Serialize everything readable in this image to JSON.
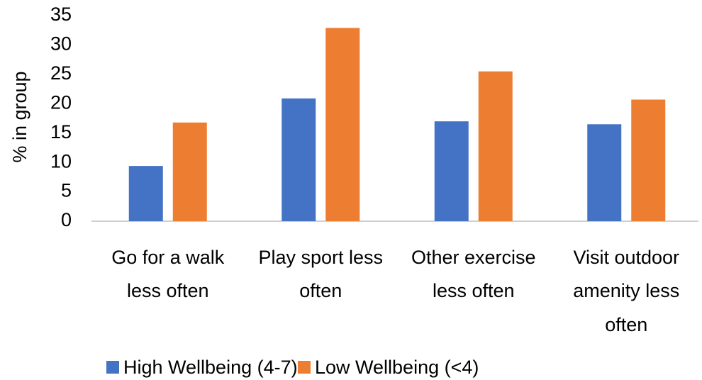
{
  "chart_data": {
    "type": "bar",
    "y_label": "% in group",
    "categories": [
      "Go for a walk less often",
      "Play sport less often",
      "Other exercise less often",
      "Visit outdoor amenity less often"
    ],
    "series": [
      {
        "name": "High Wellbeing (4-7)",
        "color": "#4472c4",
        "values": [
          9.4,
          20.9,
          17.0,
          16.5
        ]
      },
      {
        "name": "Low Wellbeing (<4)",
        "color": "#ed7d31",
        "values": [
          16.8,
          32.9,
          25.5,
          20.7
        ]
      }
    ],
    "ylim": [
      0,
      35
    ],
    "yticks": [
      0,
      5,
      10,
      15,
      20,
      25,
      30,
      35
    ],
    "grid": false,
    "legend": "bottom"
  }
}
